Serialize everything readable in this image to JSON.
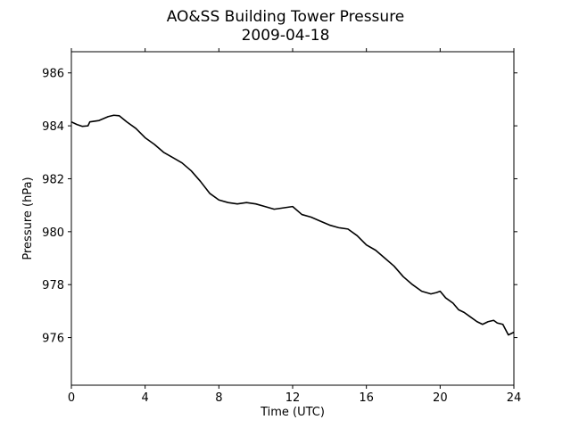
{
  "chart_data": {
    "type": "line",
    "title": "AO&SS Building Tower Pressure",
    "subtitle": "2009-04-18",
    "xlabel": "Time (UTC)",
    "ylabel": "Pressure (hPa)",
    "xlim": [
      0,
      24
    ],
    "ylim": [
      974.2,
      986.8
    ],
    "xticks": [
      0,
      4,
      8,
      12,
      16,
      20,
      24
    ],
    "yticks": [
      976,
      978,
      980,
      982,
      984,
      986
    ],
    "grid": false,
    "line_color": "#000000",
    "series": [
      {
        "x": [
          0,
          0.3,
          0.6,
          0.9,
          1.0,
          1.5,
          2.0,
          2.3,
          2.6,
          3.0,
          3.5,
          4.0,
          4.5,
          5.0,
          5.5,
          6.0,
          6.5,
          7.0,
          7.5,
          8.0,
          8.5,
          9.0,
          9.5,
          10.0,
          10.5,
          11.0,
          11.5,
          12.0,
          12.5,
          13.0,
          13.5,
          14.0,
          14.5,
          15.0,
          15.5,
          16.0,
          16.5,
          17.0,
          17.5,
          18.0,
          18.5,
          19.0,
          19.5,
          19.8,
          20.0,
          20.3,
          20.7,
          21.0,
          21.3,
          21.6,
          22.0,
          22.3,
          22.6,
          22.9,
          23.1,
          23.4,
          23.7,
          24.0
        ],
        "y": [
          984.15,
          984.05,
          983.98,
          984.0,
          984.15,
          984.2,
          984.35,
          984.4,
          984.38,
          984.15,
          983.9,
          983.55,
          983.3,
          983.0,
          982.8,
          982.6,
          982.3,
          981.9,
          981.45,
          981.2,
          981.1,
          981.05,
          981.1,
          981.05,
          980.95,
          980.85,
          980.9,
          980.95,
          980.65,
          980.55,
          980.4,
          980.25,
          980.15,
          980.1,
          979.85,
          979.5,
          979.3,
          979.0,
          978.7,
          978.3,
          978.0,
          977.75,
          977.65,
          977.7,
          977.75,
          977.5,
          977.3,
          977.05,
          976.95,
          976.8,
          976.6,
          976.5,
          976.6,
          976.65,
          976.55,
          976.5,
          976.1,
          976.2
        ]
      }
    ]
  }
}
